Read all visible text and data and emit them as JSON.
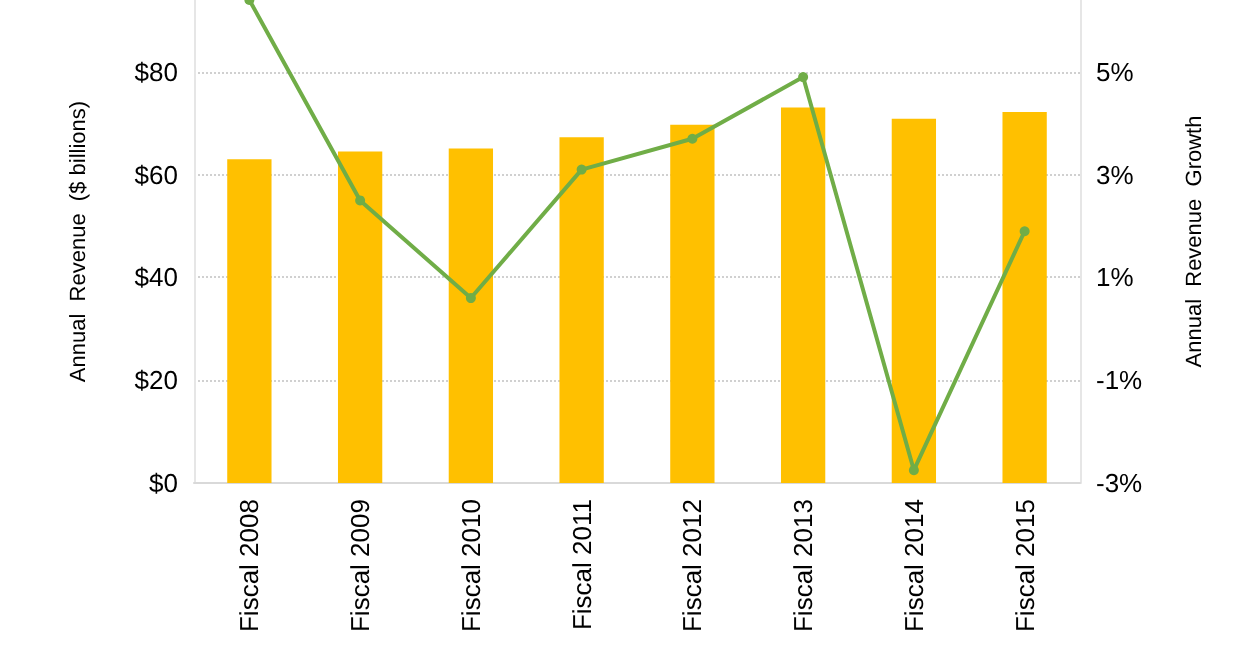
{
  "chart_data": {
    "type": "bar",
    "ylabel": "Annual  Revenue  ($ billions)",
    "y2label": "Annual  Revenue  Growth",
    "categories": [
      "Fiscal 2008",
      "Fiscal 2009",
      "Fiscal 2010",
      "Fiscal 2011",
      "Fiscal 2012",
      "Fiscal 2013",
      "Fiscal 2014",
      "Fiscal 2015"
    ],
    "series": [
      {
        "color": "#ffc000",
        "values": [
          63.0,
          64.5,
          65.1,
          67.3,
          69.7,
          73.1,
          70.9,
          72.2
        ]
      },
      {
        "type": "line",
        "axis": "y2",
        "color": "#70ad47",
        "marker": "circle",
        "values": [
          6.4,
          2.5,
          0.6,
          3.1,
          3.7,
          4.9,
          -2.75,
          1.9
        ]
      }
    ],
    "ylim": [
      0,
      94
    ],
    "yticks": [
      {
        "value": 0,
        "label": "$0"
      },
      {
        "value": 20,
        "label": "$20"
      },
      {
        "value": 40,
        "label": "$40"
      },
      {
        "value": 60,
        "label": "$60"
      },
      {
        "value": 80,
        "label": "$80"
      }
    ],
    "y2lim": [
      -3,
      6.4
    ],
    "y2ticks": [
      {
        "value": -3,
        "label": "-3%"
      },
      {
        "value": -1,
        "label": "-1%"
      },
      {
        "value": 1,
        "label": "1%"
      },
      {
        "value": 3,
        "label": "3%"
      },
      {
        "value": 5,
        "label": "5%"
      }
    ],
    "grid": "y"
  }
}
